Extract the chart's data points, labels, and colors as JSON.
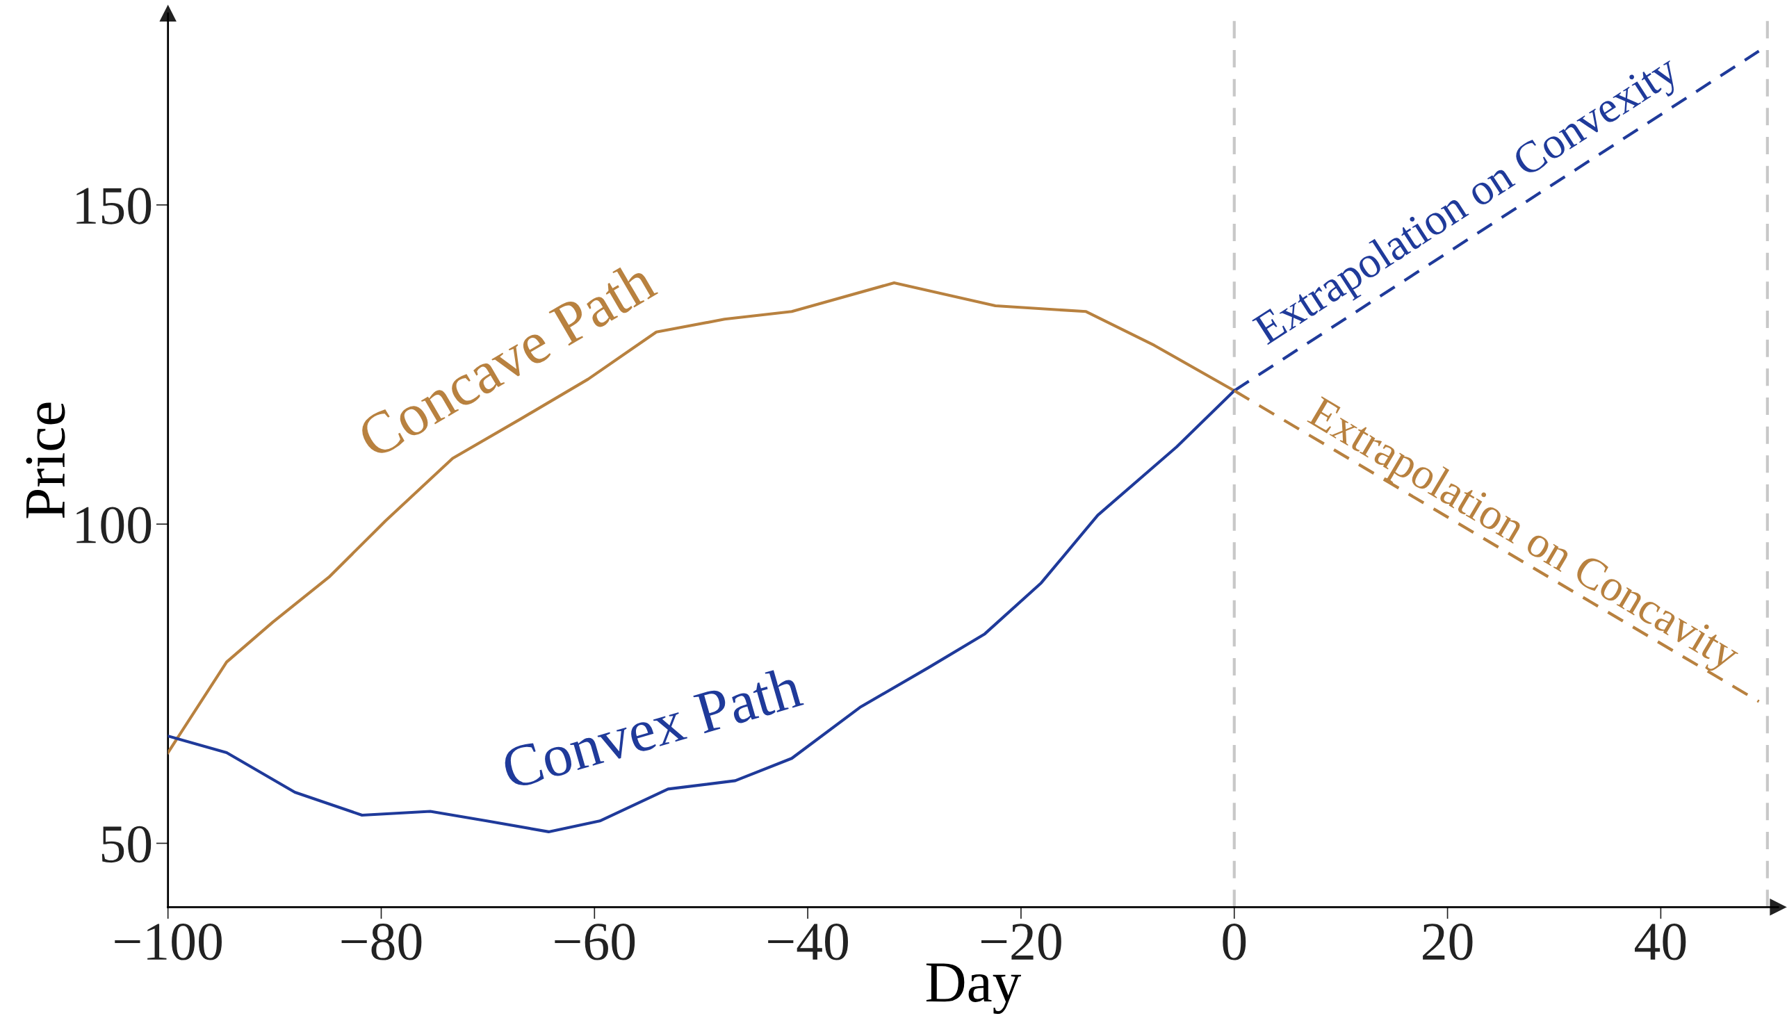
{
  "chart_data": {
    "type": "line",
    "xlabel": "Day",
    "ylabel": "Price",
    "xlim": [
      -100,
      51
    ],
    "ylim": [
      40,
      180
    ],
    "xticks": [
      {
        "value": -100,
        "label": "−100"
      },
      {
        "value": -80,
        "label": "−80"
      },
      {
        "value": -60,
        "label": "−60"
      },
      {
        "value": -40,
        "label": "−40"
      },
      {
        "value": -20,
        "label": "−20"
      },
      0,
      20,
      40
    ],
    "yticks": [
      50,
      100,
      150
    ],
    "grid": false,
    "ref_lines": [
      {
        "axis": "x",
        "value": 0,
        "color": "#c8c8c8",
        "line_style": "dashed"
      },
      {
        "axis": "x",
        "value": 50,
        "color": "#c8c8c8",
        "line_style": "dashed"
      }
    ],
    "series": [
      {
        "name": "Concave Path",
        "color": "#b8813f",
        "line_style": "solid",
        "x": [
          -100,
          -94.5,
          -90.2,
          -84.9,
          -79.6,
          -73.3,
          -66.9,
          -60.6,
          -54.2,
          -47.8,
          -41.5,
          -31.9,
          -22.4,
          -13.9,
          -7.5,
          0
        ],
        "values": [
          64.2,
          78.4,
          84.6,
          91.7,
          100.5,
          110.3,
          116.5,
          122.7,
          130.1,
          132.1,
          133.3,
          137.8,
          134.2,
          133.3,
          128.0,
          120.9
        ]
      },
      {
        "name": "Convex Path",
        "color": "#1f3a9a",
        "line_style": "solid",
        "x": [
          -100,
          -94.5,
          -88.1,
          -81.8,
          -75.4,
          -70.1,
          -64.3,
          -59.5,
          -53.1,
          -46.8,
          -41.5,
          -35.1,
          -28.7,
          -23.4,
          -18.1,
          -12.8,
          -5.4,
          0
        ],
        "values": [
          66.8,
          64.2,
          58.0,
          54.4,
          55.0,
          53.5,
          51.8,
          53.5,
          58.5,
          59.8,
          63.3,
          71.3,
          77.5,
          82.8,
          90.8,
          101.4,
          112.1,
          120.9
        ]
      },
      {
        "name": "Extrapolation on Convexity",
        "color": "#1f3a9a",
        "line_style": "dashed",
        "x": [
          0,
          49.2
        ],
        "values": [
          120.9,
          174.1
        ]
      },
      {
        "name": "Extrapolation on Concavity",
        "color": "#b8813f",
        "line_style": "dashed",
        "x": [
          0,
          49.2
        ],
        "values": [
          120.9,
          72.2
        ]
      }
    ]
  }
}
